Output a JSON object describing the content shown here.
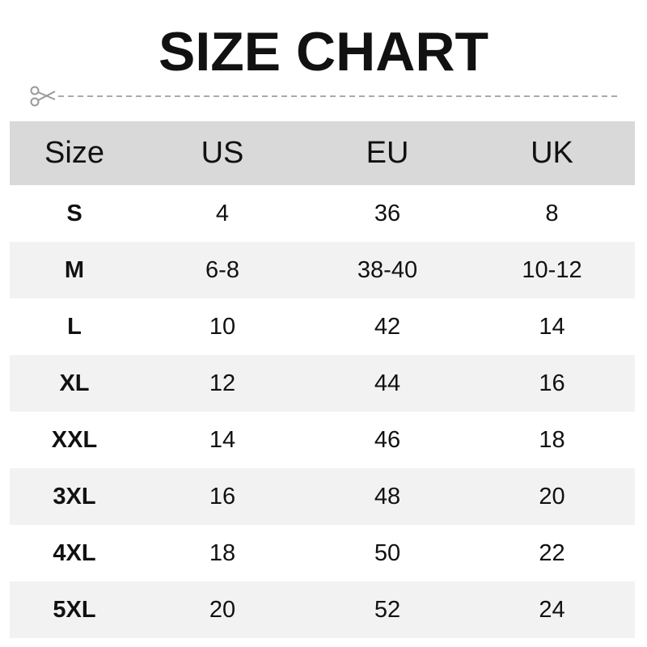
{
  "title": "SIZE CHART",
  "icons": {
    "cut_line": "scissors-icon"
  },
  "table": {
    "headers": [
      "Size",
      "US",
      "EU",
      "UK"
    ],
    "rows": [
      [
        "S",
        "4",
        "36",
        "8"
      ],
      [
        "M",
        "6-8",
        "38-40",
        "10-12"
      ],
      [
        "L",
        "10",
        "42",
        "14"
      ],
      [
        "XL",
        "12",
        "44",
        "16"
      ],
      [
        "XXL",
        "14",
        "46",
        "18"
      ],
      [
        "3XL",
        "16",
        "48",
        "20"
      ],
      [
        "4XL",
        "18",
        "50",
        "22"
      ],
      [
        "5XL",
        "20",
        "52",
        "24"
      ]
    ]
  },
  "colors": {
    "header_bg": "#d9d9d9",
    "alt_row_bg": "#f2f2f2",
    "cut_line": "#9a9a9a"
  }
}
